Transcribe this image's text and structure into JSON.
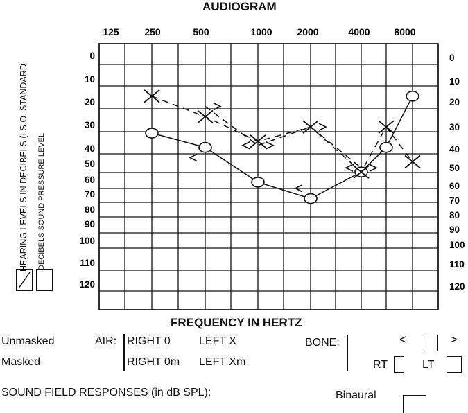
{
  "chart_data": {
    "type": "line",
    "title": "AUDIOGRAM",
    "xlabel": "FREQUENCY IN HERTZ",
    "frequency_ticks": [
      "125",
      "250",
      "500",
      "1000",
      "2000",
      "4000",
      "8000"
    ],
    "left_ticks": [
      "0",
      "10",
      "20",
      "30",
      "40",
      "50",
      "60",
      "70",
      "80",
      "90",
      "100",
      "110",
      "120"
    ],
    "right_ticks": [
      "0",
      "10",
      "20",
      "30",
      "40",
      "50",
      "60",
      "70",
      "80",
      "90",
      "100",
      "110",
      "120"
    ],
    "ylim": [
      0,
      130
    ],
    "y_direction": "down",
    "grid": true,
    "series": [
      {
        "name": "RIGHT 0",
        "marker": "circle",
        "line": "solid",
        "x": [
          "250",
          "500",
          "1000",
          "2000",
          "4000",
          "6000",
          "8000"
        ],
        "y": [
          43,
          50,
          67,
          75,
          62,
          50,
          25
        ]
      },
      {
        "name": "LEFT X",
        "marker": "x",
        "line": "dashed",
        "x": [
          "250",
          "500",
          "1000",
          "2000",
          "4000",
          "6000",
          "8000"
        ],
        "y": [
          25,
          35,
          47,
          40,
          62,
          40,
          57
        ]
      },
      {
        "name": "BONE right <",
        "marker": "lt",
        "line": "none",
        "x": [
          "500",
          "1000",
          "2000",
          "4000"
        ],
        "y": [
          55,
          49,
          70,
          60
        ]
      },
      {
        "name": "BONE left >",
        "marker": "gt",
        "line": "dashed",
        "x": [
          "500",
          "1000",
          "2000",
          "4000"
        ],
        "y": [
          30,
          49,
          40,
          60
        ]
      }
    ]
  },
  "side_labels": {
    "hearing_levels": "HEARING LEVELS IN DECIBELS (I.S.O. STANDARD",
    "sound_pressure": "DECIBELS SOUND PRESSURE LEVEL"
  },
  "legend": {
    "unmasked": "Unmasked",
    "masked": "Masked",
    "air": "AIR:",
    "right_unmasked": "RIGHT 0",
    "left_unmasked": "LEFT X",
    "right_masked": "RIGHT 0m",
    "left_masked": "LEFT Xm",
    "bone": "BONE:",
    "bone_left_symbol": "<",
    "bone_right_symbol": ">",
    "rt": "RT",
    "lt": "LT"
  },
  "sound_field": {
    "label": "SOUND FIELD RESPONSES (in dB SPL):",
    "binaural": "Binaural"
  }
}
